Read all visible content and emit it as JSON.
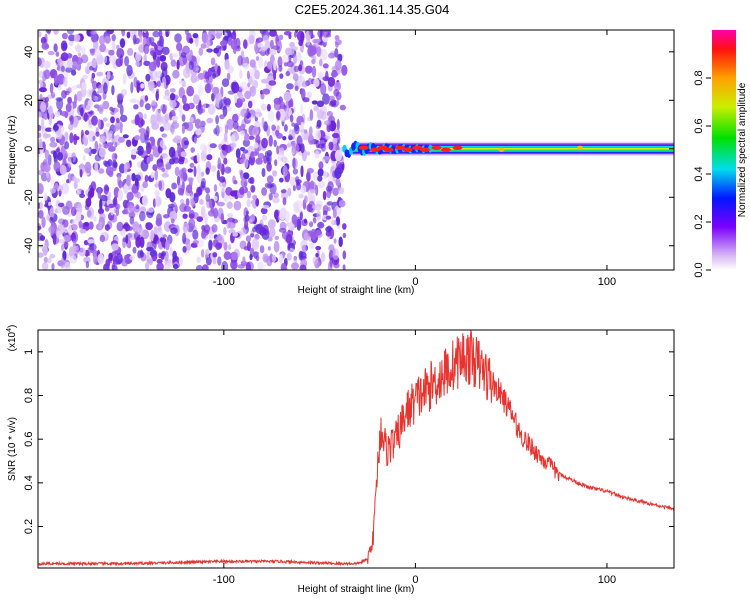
{
  "title": "C2E5.2024.361.14.35.G04",
  "chart_data": [
    {
      "type": "heatmap",
      "xlabel": "Height of straight line (km)",
      "ylabel": "Frequency (Hz)",
      "xlim": [
        -197,
        135
      ],
      "ylim": [
        -50,
        49
      ],
      "xticks": [
        -100,
        0,
        100
      ],
      "xtick_labels": [
        "-100",
        "0",
        "100"
      ],
      "yticks": [
        -40,
        -20,
        0,
        20,
        40
      ],
      "ytick_labels": [
        "-40",
        "-20",
        "0",
        "20",
        "40"
      ],
      "colorbar": {
        "label": "Normalized spectral amplitude",
        "range": [
          0,
          1
        ],
        "ticks": [
          0,
          0.2,
          0.4,
          0.6,
          0.8
        ],
        "tick_labels": [
          "0.0",
          "0.2",
          "0.4",
          "0.6",
          "0.8"
        ]
      },
      "noise_region_x": [
        -197,
        -37
      ],
      "signal_band": {
        "x_start": -37,
        "x_end": 135,
        "center_hz": 0
      }
    },
    {
      "type": "line",
      "xlabel": "Height of straight line (km)",
      "ylabel": "SNR (10 * v/v)",
      "yscale_label": "(x10",
      "yscale_exponent": "4",
      "yscale_suffix": ")",
      "xlim": [
        -197,
        135
      ],
      "ylim": [
        0.01,
        1.1
      ],
      "xticks": [
        -100,
        0,
        100
      ],
      "xtick_labels": [
        "-100",
        "0",
        "100"
      ],
      "yticks": [
        0.2,
        0.4,
        0.6,
        0.8,
        1.0
      ],
      "ytick_labels": [
        "0.2",
        "0.4",
        "0.6",
        "0.8",
        "1"
      ],
      "color": "#e8332f",
      "series": [
        {
          "x": [
            -197,
            -150,
            -100,
            -70,
            -40,
            -30,
            -25,
            -22,
            -20,
            -18,
            -15,
            -10,
            -5,
            0,
            5,
            10,
            15,
            20,
            25,
            30,
            35,
            40,
            45,
            50,
            55,
            60,
            65,
            70,
            75,
            80,
            90,
            100,
            110,
            120,
            130,
            135
          ],
          "y": [
            0.03,
            0.03,
            0.04,
            0.04,
            0.03,
            0.03,
            0.05,
            0.15,
            0.45,
            0.65,
            0.55,
            0.6,
            0.72,
            0.78,
            0.82,
            0.86,
            0.9,
            0.94,
            0.98,
            0.97,
            0.92,
            0.86,
            0.8,
            0.72,
            0.62,
            0.57,
            0.52,
            0.48,
            0.44,
            0.42,
            0.38,
            0.36,
            0.33,
            0.31,
            0.29,
            0.28
          ]
        }
      ]
    }
  ]
}
